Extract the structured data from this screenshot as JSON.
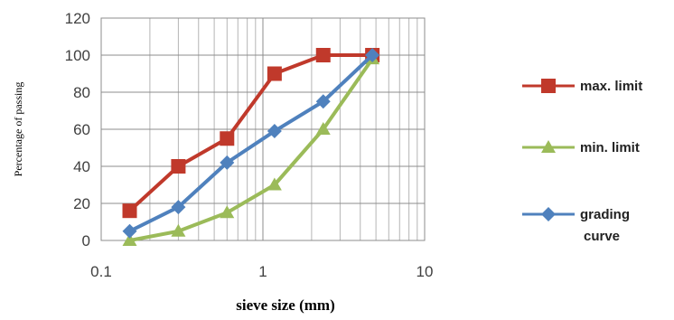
{
  "chart_data": {
    "type": "line",
    "xlabel": "sieve size (mm)",
    "ylabel": "Percentage of passing",
    "x_scale": "log",
    "xlim": [
      0.1,
      10
    ],
    "ylim": [
      0,
      120
    ],
    "x_ticks": [
      0.1,
      1,
      10
    ],
    "x_tick_labels": [
      "0.1",
      "1",
      "10"
    ],
    "y_ticks": [
      0,
      20,
      40,
      60,
      80,
      100,
      120
    ],
    "y_tick_labels": [
      "0",
      "20",
      "40",
      "60",
      "80",
      "100",
      "120"
    ],
    "grid": true,
    "legend_position": "right",
    "series": [
      {
        "name": "max. limit",
        "color": "#c0392b",
        "marker": "square",
        "x": [
          0.15,
          0.3,
          0.6,
          1.18,
          2.36,
          4.75
        ],
        "y": [
          16,
          40,
          55,
          90,
          100,
          100
        ]
      },
      {
        "name": "min. limit",
        "color": "#9bbb59",
        "marker": "triangle",
        "x": [
          0.15,
          0.3,
          0.6,
          1.18,
          2.36,
          4.75
        ],
        "y": [
          0,
          5,
          15,
          30,
          60,
          98
        ]
      },
      {
        "name": "grading curve",
        "legend_lines": [
          "grading",
          "curve"
        ],
        "color": "#4f81bd",
        "marker": "diamond",
        "x": [
          0.15,
          0.3,
          0.6,
          1.18,
          2.36,
          4.75
        ],
        "y": [
          5,
          18,
          42,
          59,
          75,
          100
        ]
      }
    ]
  }
}
